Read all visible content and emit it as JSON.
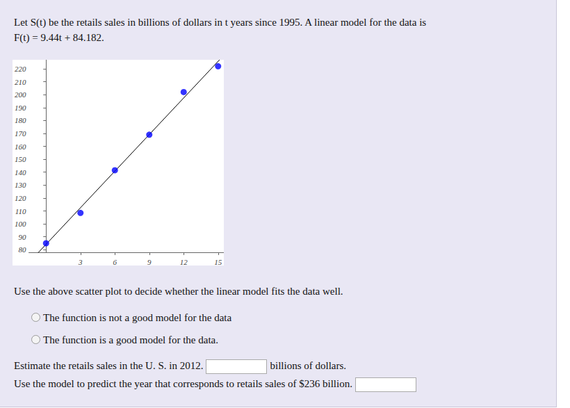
{
  "intro": [
    "Let S(t) be the retails sales in billions of dollars in t years since 1995. A linear model for the data is",
    "F(t) = 9.44t + 84.182."
  ],
  "chart_data": {
    "type": "scatter",
    "x": [
      0,
      3,
      6,
      9,
      12,
      15
    ],
    "values": [
      85,
      108.5,
      141.5,
      169,
      202,
      222
    ],
    "color": "#0000ff",
    "marker": "circle",
    "xlim": [
      -1.5,
      15.5
    ],
    "ylim": [
      78,
      227
    ],
    "xticks": [
      3,
      6,
      9,
      12,
      15
    ],
    "yticks": [
      80,
      90,
      100,
      110,
      120,
      130,
      140,
      150,
      160,
      170,
      180,
      190,
      200,
      210,
      220
    ],
    "grid": false,
    "model": {
      "slope": 9.44,
      "intercept": 84.182,
      "color": "#000000"
    }
  },
  "question": "Use the above scatter plot to decide whether the linear model fits the data well.",
  "options": [
    "The function is not a good model for the data",
    "The function is a good model for the data."
  ],
  "inputs": [
    {
      "prompt": "Estimate the retails sales in the U. S. in 2012.",
      "suffix": "billions of dollars."
    },
    {
      "prompt": "Use the model to predict the year that corresponds to retails sales of $236 billion."
    }
  ]
}
